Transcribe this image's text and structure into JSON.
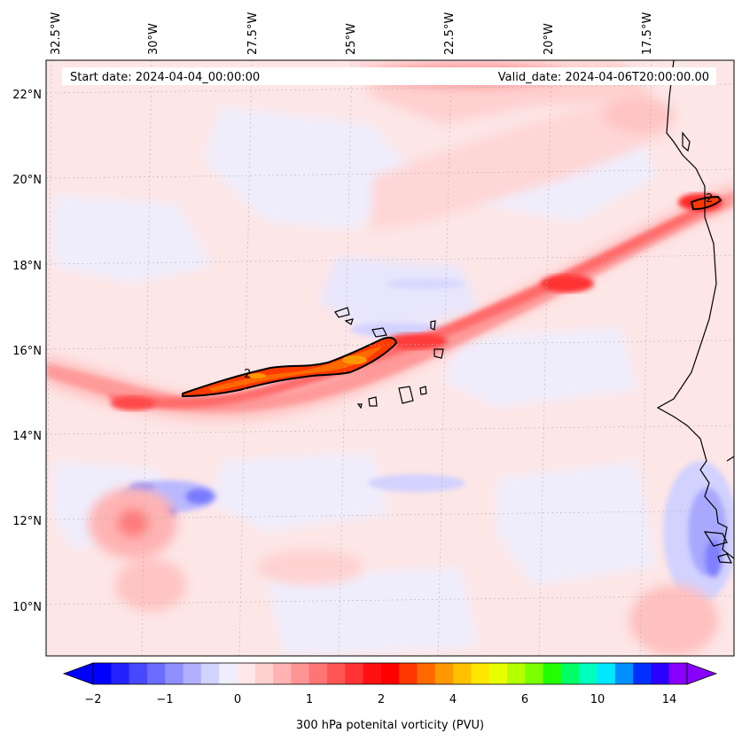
{
  "header": {
    "start_date": "Start date: 2024-04-04_00:00:00",
    "valid_date": "Valid_date: 2024-04-06T20:00:00.00"
  },
  "axes": {
    "lon_labels": [
      "32.5°W",
      "30°W",
      "27.5°W",
      "25°W",
      "22.5°W",
      "20°W",
      "17.5°W"
    ],
    "lat_labels": [
      "22°N",
      "20°N",
      "18°N",
      "16°N",
      "14°N",
      "12°N",
      "10°N"
    ]
  },
  "contour_labels": [
    "2",
    "2"
  ],
  "colorbar": {
    "label": "300 hPa potenital vorticity (PVU)",
    "ticks": [
      "−2",
      "−1",
      "0",
      "1",
      "2",
      "4",
      "6",
      "10",
      "14"
    ],
    "colors": [
      "#0000ff",
      "#2222ff",
      "#4848ff",
      "#6b6bff",
      "#8f8fff",
      "#b0b0ff",
      "#d2d2ff",
      "#eeeeff",
      "#ffe8e8",
      "#ffd0d0",
      "#ffb3b3",
      "#ff9494",
      "#ff7575",
      "#ff5555",
      "#ff3333",
      "#ff1111",
      "#ff0000",
      "#ff3800",
      "#ff6a00",
      "#ff9800",
      "#ffc000",
      "#ffe600",
      "#e8ff00",
      "#b4ff00",
      "#7aff00",
      "#22ff00",
      "#00ff66",
      "#00ffbe",
      "#00e8ff",
      "#0090ff",
      "#0030ff",
      "#2a00ff",
      "#8800ff"
    ]
  }
}
